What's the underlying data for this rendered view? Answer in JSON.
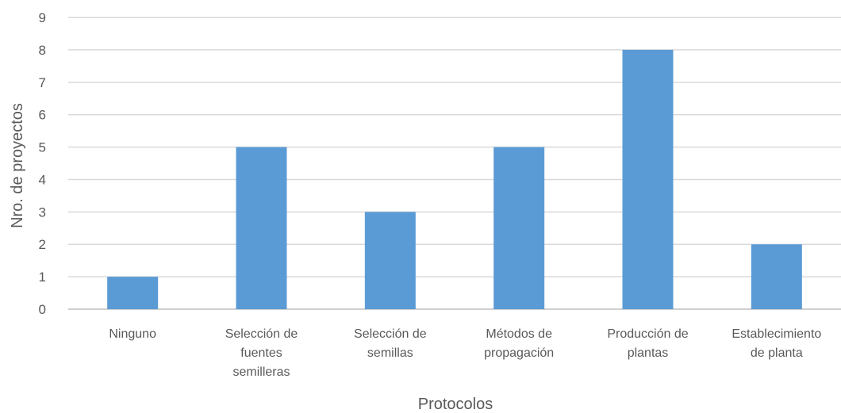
{
  "chart_data": {
    "type": "bar",
    "title": "",
    "xlabel": "Protocolos",
    "ylabel": "Nro. de proyectos",
    "ylim": [
      0,
      9
    ],
    "yticks": [
      0,
      1,
      2,
      3,
      4,
      5,
      6,
      7,
      8,
      9
    ],
    "grid": true,
    "legend": "none",
    "bar_color": "#5b9bd5",
    "categories": [
      [
        "Ninguno"
      ],
      [
        "Selección de",
        "fuentes",
        "semilleras"
      ],
      [
        "Selección de",
        "semillas"
      ],
      [
        "Métodos de",
        "propagación"
      ],
      [
        "Producción de",
        "plantas"
      ],
      [
        "Establecimiento",
        "de planta"
      ]
    ],
    "values": [
      1,
      5,
      3,
      5,
      8,
      2
    ]
  }
}
